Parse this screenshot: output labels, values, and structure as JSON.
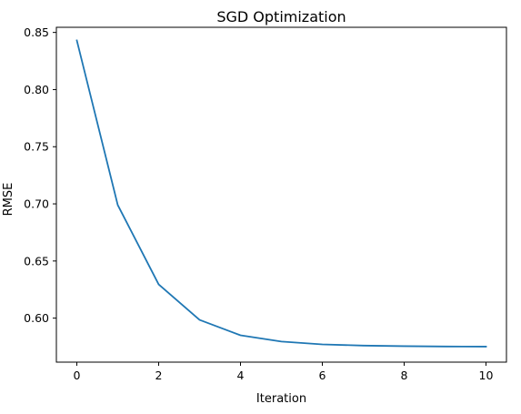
{
  "chart_data": {
    "type": "line",
    "title": "SGD Optimization",
    "xlabel": "Iteration",
    "ylabel": "RMSE",
    "xlim": [
      -0.5,
      10.5
    ],
    "ylim": [
      0.5615,
      0.8545
    ],
    "xticks": [
      0,
      2,
      4,
      6,
      8,
      10
    ],
    "yticks": [
      0.6,
      0.65,
      0.7,
      0.75,
      0.8,
      0.85
    ],
    "grid": false,
    "legend": "none",
    "series": [
      {
        "color": "#1f77b4",
        "x": [
          0,
          1,
          2,
          3,
          4,
          5,
          6,
          7,
          8,
          9,
          10
        ],
        "y": [
          0.843,
          0.699,
          0.6295,
          0.5985,
          0.585,
          0.5795,
          0.577,
          0.576,
          0.5755,
          0.5752,
          0.5751
        ]
      }
    ]
  }
}
